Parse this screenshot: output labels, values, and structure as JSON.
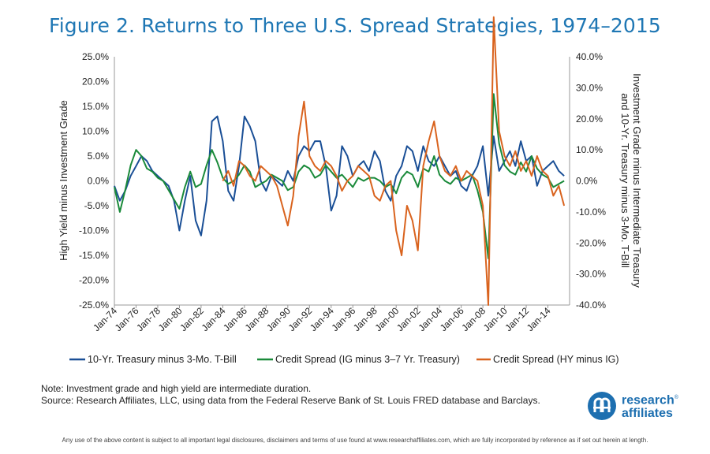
{
  "title": "Figure 2. Returns to Three U.S. Spread Strategies, 1974–2015",
  "note_line1": "Note: Investment grade and high yield are intermediate duration.",
  "note_line2": "Source: Research Affiliates, LLC, using data from the Federal Reserve Bank of St. Louis FRED database and Barclays.",
  "disclaimer": "Any use of the above content is subject to all important legal disclosures, disclaimers and terms of use found at www.researchaffiliates.com, which are fully incorporated by reference as if set out herein at length.",
  "logo": {
    "line1": "research",
    "tm": "®",
    "line2": "affiliates",
    "icon": "research-affiliates-logo-icon",
    "color": "#1d6fb0"
  },
  "colors": {
    "title": "#1f77b4",
    "blue": "#1a4f96",
    "green": "#1a8a3a",
    "orange": "#d9631e"
  },
  "chart_data": {
    "type": "line",
    "title": "Figure 2. Returns to Three U.S. Spread Strategies, 1974–2015",
    "ylabel_left": "High Yield minus Investment Grade",
    "ylabel_right_line1": "Investment Grade minus Intermediate Treasury",
    "ylabel_right_line2": "and 10-Yr. Treasury minus 3-Mo. T-Bill",
    "ylim_left": [
      -25,
      25
    ],
    "ylim_right": [
      -40,
      40
    ],
    "left_ticks": [
      "25.0%",
      "20.0%",
      "15.0%",
      "10.0%",
      "5.0%",
      "0.0%",
      "-5.0%",
      "-10.0%",
      "-15.0%",
      "-20.0%",
      "-25.0%"
    ],
    "right_ticks": [
      "40.0%",
      "30.0%",
      "20.0%",
      "10.0%",
      "0.0%",
      "-10.0%",
      "-20.0%",
      "-30.0%",
      "-40.0%"
    ],
    "x_ticks": [
      "Jan-74",
      "Jan-76",
      "Jan-78",
      "Jan-80",
      "Jan-82",
      "Jan-84",
      "Jan-86",
      "Jan-88",
      "Jan-90",
      "Jan-92",
      "Jan-94",
      "Jan-96",
      "Jan-98",
      "Jan-00",
      "Jan-02",
      "Jan-04",
      "Jan-06",
      "Jan-08",
      "Jan-10",
      "Jan-12",
      "Jan-14"
    ],
    "xlim": [
      1974.0,
      2016.0
    ],
    "grid": false,
    "legend_position": "bottom",
    "series": [
      {
        "name": "10-Yr. Treasury minus 3-Mo. T-Bill",
        "color": "#1a4f96",
        "axis": "left",
        "x": [
          1974.0,
          1974.5,
          1975.0,
          1975.5,
          1976.0,
          1976.5,
          1977.0,
          1977.5,
          1978.0,
          1978.5,
          1979.0,
          1979.5,
          1980.0,
          1980.5,
          1981.0,
          1981.5,
          1982.0,
          1982.5,
          1983.0,
          1983.5,
          1984.0,
          1984.5,
          1985.0,
          1985.5,
          1986.0,
          1986.5,
          1987.0,
          1987.5,
          1988.0,
          1988.5,
          1989.0,
          1989.5,
          1990.0,
          1990.5,
          1991.0,
          1991.5,
          1992.0,
          1992.5,
          1993.0,
          1993.5,
          1994.0,
          1994.5,
          1995.0,
          1995.5,
          1996.0,
          1996.5,
          1997.0,
          1997.5,
          1998.0,
          1998.5,
          1999.0,
          1999.5,
          2000.0,
          2000.5,
          2001.0,
          2001.5,
          2002.0,
          2002.5,
          2003.0,
          2003.5,
          2004.0,
          2004.5,
          2005.0,
          2005.5,
          2006.0,
          2006.5,
          2007.0,
          2007.5,
          2008.0,
          2008.5,
          2009.0,
          2009.5,
          2010.0,
          2010.5,
          2011.0,
          2011.5,
          2012.0,
          2012.5,
          2013.0,
          2013.5,
          2014.0,
          2014.5,
          2015.0,
          2015.5
        ],
        "values": [
          -1,
          -4,
          -2,
          1,
          3,
          5,
          4,
          2,
          1,
          0,
          -1,
          -4,
          -10,
          -4,
          1,
          -8,
          -11,
          -4,
          12,
          13,
          8,
          -2,
          -4,
          3,
          13,
          11,
          8,
          0,
          -2,
          1,
          0,
          -1,
          2,
          0,
          5,
          7,
          6,
          8,
          8,
          3,
          -6,
          -3,
          7,
          5,
          1,
          3,
          4,
          2,
          6,
          4,
          -2,
          -4,
          1,
          3,
          7,
          6,
          2,
          7,
          4,
          3,
          5,
          3,
          1,
          2,
          -1,
          -2,
          1,
          3,
          7,
          -3,
          9,
          2,
          4,
          6,
          3,
          8,
          4,
          5,
          -1,
          2,
          3,
          4,
          2,
          1
        ]
      },
      {
        "name": "Credit Spread (IG minus 3–7 Yr. Treasury)",
        "color": "#1a8a3a",
        "axis": "right",
        "x": [
          1974.0,
          1974.5,
          1975.0,
          1975.5,
          1976.0,
          1976.5,
          1977.0,
          1977.5,
          1978.0,
          1978.5,
          1979.0,
          1979.5,
          1980.0,
          1980.5,
          1981.0,
          1981.5,
          1982.0,
          1982.5,
          1983.0,
          1983.5,
          1984.0,
          1984.5,
          1985.0,
          1985.5,
          1986.0,
          1986.5,
          1987.0,
          1987.5,
          1988.0,
          1988.5,
          1989.0,
          1989.5,
          1990.0,
          1990.5,
          1991.0,
          1991.5,
          1992.0,
          1992.5,
          1993.0,
          1993.5,
          1994.0,
          1994.5,
          1995.0,
          1995.5,
          1996.0,
          1996.5,
          1997.0,
          1997.5,
          1998.0,
          1998.5,
          1999.0,
          1999.5,
          2000.0,
          2000.5,
          2001.0,
          2001.5,
          2002.0,
          2002.5,
          2003.0,
          2003.5,
          2004.0,
          2004.5,
          2005.0,
          2005.5,
          2006.0,
          2006.5,
          2007.0,
          2007.5,
          2008.0,
          2008.5,
          2009.0,
          2009.5,
          2010.0,
          2010.5,
          2011.0,
          2011.5,
          2012.0,
          2012.5,
          2013.0,
          2013.5,
          2014.0,
          2014.5,
          2015.0,
          2015.5
        ],
        "values": [
          -2,
          -10,
          -3,
          5,
          10,
          8,
          4,
          3,
          1,
          0,
          -3,
          -6,
          -9,
          -2,
          3,
          -2,
          -1,
          5,
          10,
          6,
          1,
          -1,
          0,
          2,
          5,
          3,
          -2,
          -1,
          0,
          2,
          1,
          0,
          -3,
          -2,
          3,
          5,
          4,
          1,
          2,
          5,
          3,
          1,
          2,
          0,
          -2,
          1,
          0,
          1,
          1,
          0,
          -2,
          -1,
          -4,
          1,
          3,
          2,
          -2,
          4,
          3,
          8,
          2,
          0,
          -1,
          1,
          0,
          1,
          2,
          -3,
          -10,
          -25,
          28,
          12,
          5,
          3,
          2,
          6,
          3,
          8,
          4,
          2,
          1,
          -2,
          -1,
          0
        ]
      },
      {
        "name": "Credit Spread (HY minus IG)",
        "color": "#d9631e",
        "axis": "left",
        "x": [
          1984.0,
          1984.5,
          1985.0,
          1985.5,
          1986.0,
          1986.5,
          1987.0,
          1987.5,
          1988.0,
          1988.5,
          1989.0,
          1989.5,
          1990.0,
          1990.5,
          1991.0,
          1991.5,
          1992.0,
          1992.5,
          1993.0,
          1993.5,
          1994.0,
          1994.5,
          1995.0,
          1995.5,
          1996.0,
          1996.5,
          1997.0,
          1997.5,
          1998.0,
          1998.5,
          1999.0,
          1999.5,
          2000.0,
          2000.5,
          2001.0,
          2001.5,
          2002.0,
          2002.5,
          2003.0,
          2003.5,
          2004.0,
          2004.5,
          2005.0,
          2005.5,
          2006.0,
          2006.5,
          2007.0,
          2007.5,
          2008.0,
          2008.5,
          2009.0,
          2009.5,
          2010.0,
          2010.5,
          2011.0,
          2011.5,
          2012.0,
          2012.5,
          2013.0,
          2013.5,
          2014.0,
          2014.5,
          2015.0,
          2015.5
        ],
        "values": [
          0,
          2,
          -1,
          4,
          3,
          1,
          0,
          3,
          2,
          1,
          -1,
          -5,
          -9,
          -3,
          9,
          16,
          5,
          3,
          2,
          4,
          3,
          1,
          -2,
          0,
          1,
          3,
          2,
          1,
          -3,
          -4,
          -1,
          0,
          -10,
          -15,
          -5,
          -8,
          -14,
          3,
          8,
          12,
          5,
          2,
          1,
          3,
          0,
          2,
          1,
          0,
          -5,
          -25,
          33,
          10,
          5,
          3,
          6,
          2,
          4,
          1,
          5,
          2,
          1,
          -3,
          -1,
          -5
        ]
      }
    ]
  }
}
